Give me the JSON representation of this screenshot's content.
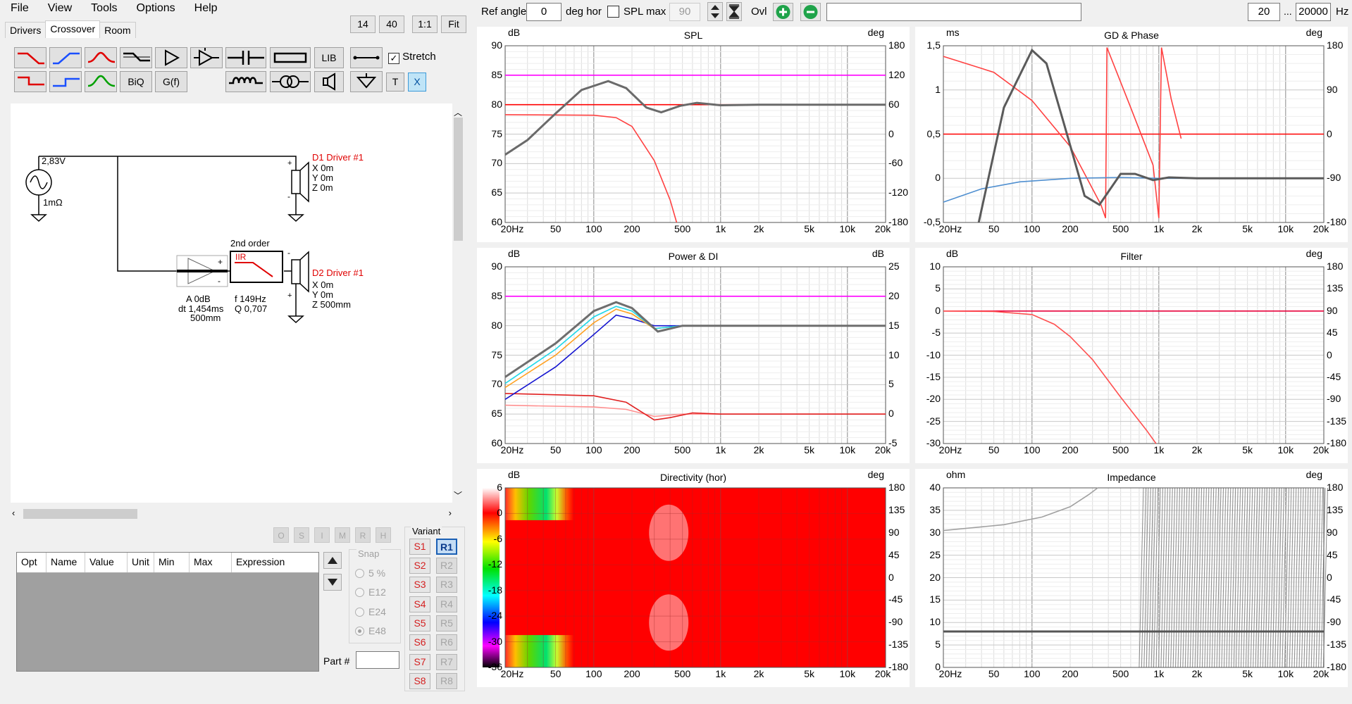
{
  "menu": [
    "File",
    "View",
    "Tools",
    "Options",
    "Help"
  ],
  "tabs": [
    "Drivers",
    "Crossover",
    "Room"
  ],
  "active_tab": "Crossover",
  "zoom_buttons": [
    "14",
    "40",
    "1:1",
    "Fit"
  ],
  "palette": {
    "lib_label": "LIB",
    "biq_label": "BiQ",
    "gf_label": "G(f)",
    "t_label": "T",
    "x_label": "X",
    "stretch_label": "Stretch",
    "stretch_checked": true
  },
  "circuit": {
    "source_voltage": "2,83V",
    "source_impedance": "1mΩ",
    "d1": {
      "name": "D1 Driver #1",
      "x": "X 0m",
      "y": "Y 0m",
      "z": "Z 0m"
    },
    "d2": {
      "name": "D2 Driver #1",
      "x": "X 0m",
      "y": "Y 0m",
      "z": "Z 500mm"
    },
    "filter_title": "2nd order",
    "filter_type": "IIR",
    "filter_f": "f   149Hz",
    "filter_q": "Q  0,707",
    "amp_a": "A   0dB",
    "amp_dt": "dt 1,454ms",
    "amp_dist": "500mm"
  },
  "opt_buttons": [
    "O",
    "S",
    "I",
    "M",
    "R",
    "H"
  ],
  "opt_table": {
    "columns": [
      "Opt",
      "Name",
      "Value",
      "Unit",
      "Min",
      "Max",
      "Expression"
    ]
  },
  "snap": {
    "label": "Snap",
    "options": [
      "5 %",
      "E12",
      "E24",
      "E48"
    ],
    "selected": "E48"
  },
  "part_label": "Part #",
  "variant": {
    "label": "Variant",
    "s": [
      "S1",
      "S2",
      "S3",
      "S4",
      "S5",
      "S6",
      "S7",
      "S8"
    ],
    "r": [
      "R1",
      "R2",
      "R3",
      "R4",
      "R5",
      "R6",
      "R7",
      "R8"
    ],
    "active": "R1"
  },
  "top_controls": {
    "ref_angle_label": "Ref angle",
    "ref_angle_value": "0",
    "deg_hor_label": "deg hor",
    "spl_max_label": "SPL max",
    "spl_max_checked": false,
    "spl_max_value": "90",
    "ovl_label": "Ovl",
    "freq_min": "20",
    "freq_sep": "...",
    "freq_max": "20000",
    "hz_label": "Hz"
  },
  "x_ticks": [
    "20Hz",
    "50",
    "100",
    "200",
    "500",
    "1k",
    "2k",
    "5k",
    "10k",
    "20k"
  ],
  "x_tick_values": [
    20,
    50,
    100,
    200,
    500,
    1000,
    2000,
    5000,
    10000,
    20000
  ],
  "charts": [
    {
      "id": "spl",
      "title": "SPL",
      "lunit": "dB",
      "runit": "deg",
      "left": [
        "90",
        "85",
        "80",
        "75",
        "70",
        "65",
        "60"
      ],
      "right": [
        "180",
        "120",
        "60",
        "0",
        "-60",
        "-120",
        "-180"
      ],
      "ylim": [
        60,
        90
      ],
      "series": [
        {
          "color": "#ff00ff",
          "points": [
            [
              20,
              85
            ],
            [
              20000,
              85
            ]
          ]
        },
        {
          "color": "#ff0000",
          "points": [
            [
              20,
              80
            ],
            [
              20000,
              80
            ]
          ]
        },
        {
          "color": "#ff4040",
          "points": [
            [
              20,
              78.3
            ],
            [
              100,
              78.2
            ],
            [
              150,
              77.8
            ],
            [
              200,
              76.3
            ],
            [
              300,
              70.5
            ],
            [
              400,
              63.8
            ],
            [
              450,
              60
            ]
          ]
        },
        {
          "color": "#6a6a6a",
          "points": [
            [
              20,
              71.5
            ],
            [
              30,
              74
            ],
            [
              50,
              78.5
            ],
            [
              80,
              82.5
            ],
            [
              130,
              84
            ],
            [
              180,
              82.8
            ],
            [
              260,
              79.5
            ],
            [
              340,
              78.7
            ],
            [
              480,
              79.8
            ],
            [
              650,
              80.3
            ],
            [
              800,
              80.1
            ],
            [
              1000,
              79.9
            ],
            [
              2000,
              80
            ],
            [
              20000,
              80
            ]
          ]
        }
      ]
    },
    {
      "id": "gd",
      "title": "GD & Phase",
      "lunit": "ms",
      "runit": "deg",
      "left": [
        "1,5",
        "1",
        "0,5",
        "0",
        "-0,5"
      ],
      "right": [
        "180",
        "90",
        "0",
        "-90",
        "-180"
      ],
      "ylim": [
        -0.5,
        1.5
      ],
      "series": [
        {
          "color": "#ff0000",
          "points": [
            [
              20,
              0.5
            ],
            [
              20000,
              0.5
            ]
          ]
        },
        {
          "color": "#ff4040",
          "points": [
            [
              20,
              1.38
            ],
            [
              50,
              1.2
            ],
            [
              100,
              0.88
            ],
            [
              200,
              0.36
            ],
            [
              350,
              -0.3
            ],
            [
              380,
              -0.45
            ],
            [
              390,
              1.48
            ],
            [
              600,
              0.8
            ],
            [
              900,
              0.15
            ],
            [
              1000,
              -0.45
            ],
            [
              1050,
              1.48
            ],
            [
              1250,
              0.9
            ],
            [
              1500,
              0.45
            ]
          ]
        },
        {
          "color": "#4f8fd0",
          "points": [
            [
              20,
              -0.27
            ],
            [
              40,
              -0.12
            ],
            [
              80,
              -0.04
            ],
            [
              200,
              0
            ],
            [
              500,
              0.01
            ],
            [
              1000,
              0
            ],
            [
              20000,
              0
            ]
          ]
        },
        {
          "color": "#5a5a5a",
          "points": [
            [
              38,
              -0.5
            ],
            [
              60,
              0.8
            ],
            [
              100,
              1.45
            ],
            [
              130,
              1.3
            ],
            [
              180,
              0.6
            ],
            [
              260,
              -0.2
            ],
            [
              340,
              -0.3
            ],
            [
              500,
              0.05
            ],
            [
              650,
              0.05
            ],
            [
              900,
              -0.02
            ],
            [
              1200,
              0.01
            ],
            [
              2000,
              0
            ],
            [
              20000,
              0
            ]
          ]
        }
      ]
    },
    {
      "id": "power",
      "title": "Power & DI",
      "lunit": "dB",
      "runit": "dB",
      "left": [
        "90",
        "85",
        "80",
        "75",
        "70",
        "65",
        "60"
      ],
      "right": [
        "25",
        "20",
        "15",
        "10",
        "5",
        "0",
        "-5"
      ],
      "ylim": [
        60,
        90
      ],
      "series": [
        {
          "color": "#ff00ff",
          "points": [
            [
              20,
              85
            ],
            [
              20000,
              85
            ]
          ]
        },
        {
          "color": "#ff9090",
          "points": [
            [
              20,
              66.5
            ],
            [
              100,
              66.2
            ],
            [
              180,
              65.8
            ],
            [
              300,
              64.6
            ],
            [
              500,
              65
            ],
            [
              1000,
              65
            ],
            [
              20000,
              65
            ]
          ]
        },
        {
          "color": "#e02020",
          "points": [
            [
              20,
              68.5
            ],
            [
              100,
              68.1
            ],
            [
              180,
              67
            ],
            [
              300,
              64
            ],
            [
              400,
              64.4
            ],
            [
              600,
              65.2
            ],
            [
              1000,
              65
            ],
            [
              20000,
              65
            ]
          ]
        },
        {
          "color": "#1414d0",
          "points": [
            [
              20,
              67.5
            ],
            [
              50,
              73
            ],
            [
              100,
              78.5
            ],
            [
              150,
              81.8
            ],
            [
              200,
              81.2
            ],
            [
              300,
              80
            ],
            [
              500,
              80
            ],
            [
              1000,
              80
            ],
            [
              20000,
              80
            ]
          ]
        },
        {
          "color": "#ffa020",
          "points": [
            [
              20,
              69.5
            ],
            [
              50,
              75
            ],
            [
              100,
              80.5
            ],
            [
              150,
              82.8
            ],
            [
              200,
              82
            ],
            [
              300,
              79.5
            ],
            [
              500,
              80
            ],
            [
              1000,
              80
            ],
            [
              20000,
              80
            ]
          ]
        },
        {
          "color": "#20d8e8",
          "points": [
            [
              20,
              70.2
            ],
            [
              50,
              76
            ],
            [
              100,
              81.5
            ],
            [
              150,
              83.3
            ],
            [
              200,
              82.5
            ],
            [
              300,
              79.5
            ],
            [
              500,
              80
            ],
            [
              1000,
              80
            ],
            [
              20000,
              80
            ]
          ]
        },
        {
          "color": "#6e6e6e",
          "points": [
            [
              20,
              71.3
            ],
            [
              50,
              77
            ],
            [
              100,
              82.5
            ],
            [
              150,
              84
            ],
            [
              200,
              83
            ],
            [
              320,
              79
            ],
            [
              500,
              80
            ],
            [
              1000,
              80
            ],
            [
              20000,
              80
            ]
          ]
        }
      ]
    },
    {
      "id": "filter",
      "title": "Filter",
      "lunit": "dB",
      "runit": "deg",
      "left": [
        "10",
        "5",
        "0",
        "-5",
        "-10",
        "-15",
        "-20",
        "-25",
        "-30"
      ],
      "right": [
        "180",
        "135",
        "90",
        "45",
        "0",
        "-45",
        "-90",
        "-135",
        "-180"
      ],
      "ylim": [
        -30,
        10
      ],
      "series": [
        {
          "color": "#e8003a",
          "points": [
            [
              20,
              0
            ],
            [
              20000,
              0
            ]
          ]
        },
        {
          "color": "#ff5050",
          "points": [
            [
              20,
              0
            ],
            [
              50,
              -0.1
            ],
            [
              100,
              -0.8
            ],
            [
              150,
              -3
            ],
            [
              200,
              -5.8
            ],
            [
              300,
              -11
            ],
            [
              500,
              -19.5
            ],
            [
              800,
              -27
            ],
            [
              950,
              -30
            ]
          ]
        }
      ]
    },
    {
      "id": "directivity",
      "title": "Directivity (hor)",
      "lunit": "dB",
      "runit": "deg",
      "left": [
        "6",
        "0",
        "-6",
        "-12",
        "-18",
        "-24",
        "-30",
        "-36"
      ],
      "right": [
        "180",
        "135",
        "90",
        "45",
        "0",
        "-45",
        "-90",
        "-135",
        "-180"
      ],
      "ylim": [
        -180,
        180
      ],
      "series": []
    },
    {
      "id": "impedance",
      "title": "Impedance",
      "lunit": "ohm",
      "runit": "deg",
      "left": [
        "40",
        "35",
        "30",
        "25",
        "20",
        "15",
        "10",
        "5",
        "0"
      ],
      "right": [
        "180",
        "135",
        "90",
        "45",
        "0",
        "-45",
        "-90",
        "-135",
        "-180"
      ],
      "ylim": [
        0,
        40
      ],
      "series": [
        {
          "color": "#555555",
          "points": [
            [
              20,
              8
            ],
            [
              20000,
              8
            ]
          ]
        },
        {
          "color": "#a0a0a0",
          "points": [
            [
              20,
              30.5
            ],
            [
              60,
              31.8
            ],
            [
              120,
              33.5
            ],
            [
              200,
              35.8
            ],
            [
              280,
              38.5
            ],
            [
              330,
              40
            ]
          ]
        }
      ]
    }
  ]
}
